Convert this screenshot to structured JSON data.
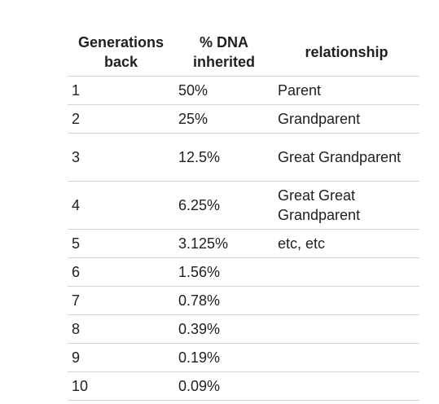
{
  "table": {
    "headers": {
      "generations": "Generations back",
      "dna": "% DNA inherited",
      "relationship": "relationship"
    },
    "rows": [
      {
        "gen": "1",
        "dna": "50%",
        "rel": "Parent"
      },
      {
        "gen": "2",
        "dna": "25%",
        "rel": "Grandparent"
      },
      {
        "gen": "3",
        "dna": "12.5%",
        "rel": "Great Grandparent"
      },
      {
        "gen": "4",
        "dna": "6.25%",
        "rel": "Great Great Grandparent"
      },
      {
        "gen": "5",
        "dna": "3.125%",
        "rel": "etc, etc"
      },
      {
        "gen": "6",
        "dna": "1.56%",
        "rel": ""
      },
      {
        "gen": "7",
        "dna": "0.78%",
        "rel": ""
      },
      {
        "gen": "8",
        "dna": "0.39%",
        "rel": ""
      },
      {
        "gen": "9",
        "dna": "0.19%",
        "rel": ""
      },
      {
        "gen": "10",
        "dna": "0.09%",
        "rel": ""
      }
    ]
  }
}
